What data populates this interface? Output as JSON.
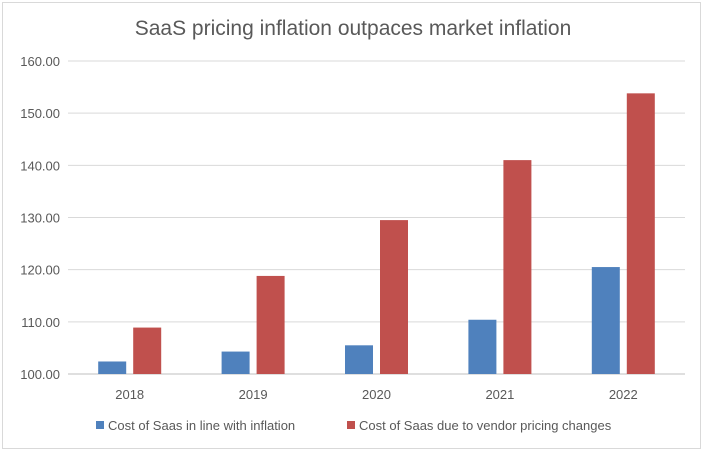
{
  "chart_data": {
    "type": "bar",
    "title": "SaaS pricing inflation outpaces market inflation",
    "categories": [
      "2018",
      "2019",
      "2020",
      "2021",
      "2022"
    ],
    "series": [
      {
        "name": "Cost of Saas in line with inflation",
        "color": "#4f81bd",
        "values": [
          102.4,
          104.3,
          105.5,
          110.4,
          120.5
        ]
      },
      {
        "name": "Cost of Saas due to vendor pricing changes",
        "color": "#c0504d",
        "values": [
          108.9,
          118.8,
          129.5,
          141.0,
          153.8
        ]
      }
    ],
    "ylim": [
      100,
      160
    ],
    "yticks": [
      "100.00",
      "110.00",
      "120.00",
      "130.00",
      "140.00",
      "150.00",
      "160.00"
    ],
    "grid": true,
    "legend_position": "bottom"
  }
}
